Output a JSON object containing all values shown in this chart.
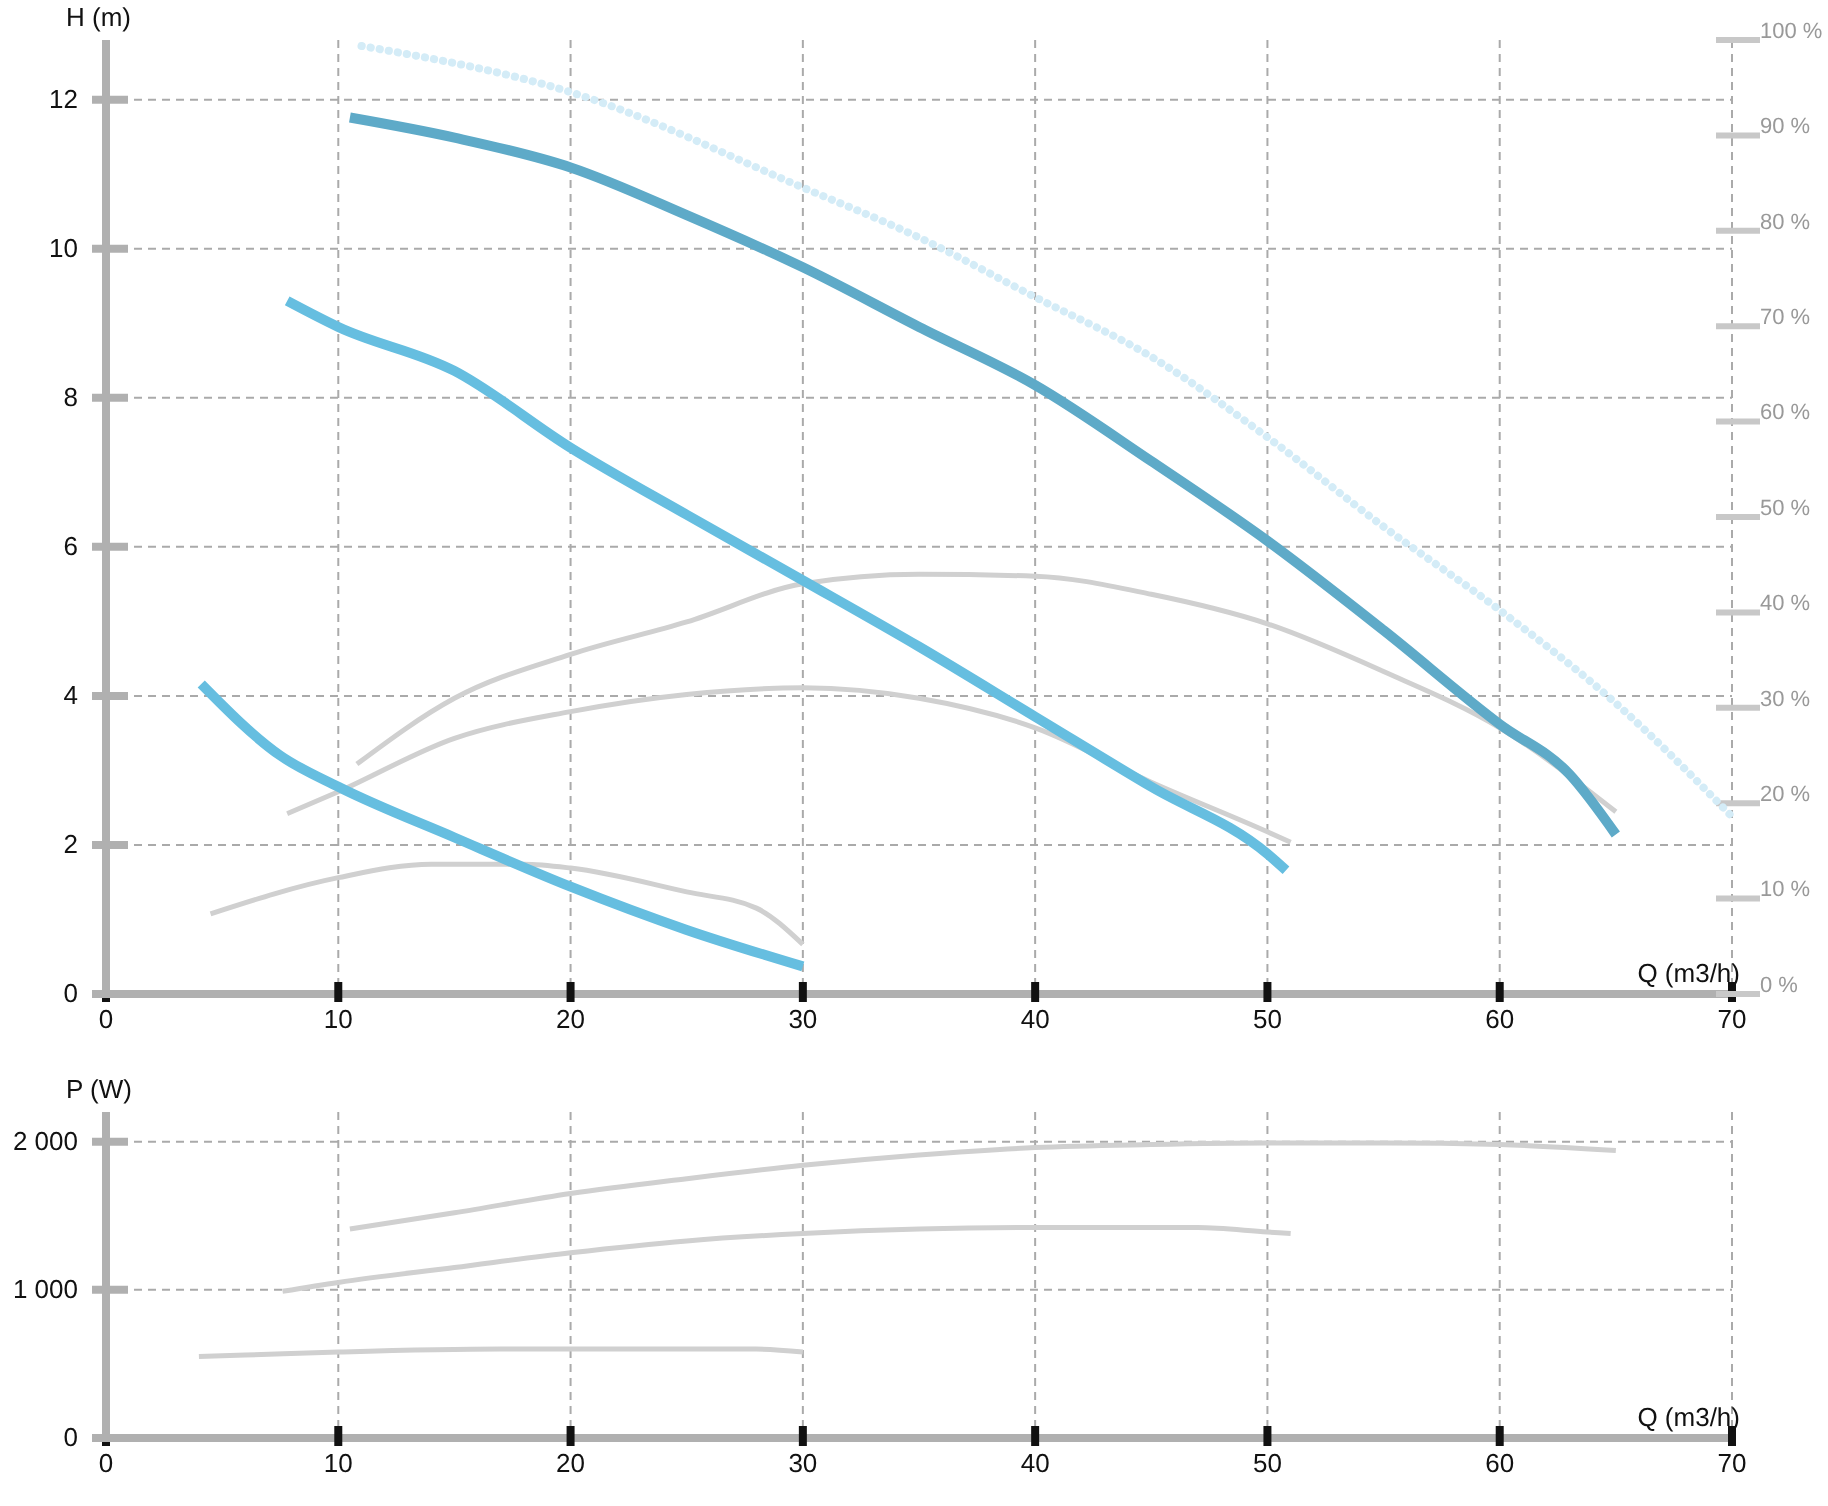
{
  "chart_data": [
    {
      "type": "line",
      "xlabel": "Q (m3/h)",
      "ylabel": "H (m)",
      "xlim": [
        0,
        70
      ],
      "xticks": [
        0,
        10,
        20,
        30,
        40,
        50,
        60,
        70
      ],
      "ylim": [
        0,
        12.8
      ],
      "yticks": [
        0,
        2,
        4,
        6,
        8,
        10,
        12
      ],
      "y2lim": [
        0,
        100
      ],
      "y2ticks": [
        {
          "value": 0,
          "label": "0 %"
        },
        {
          "value": 10,
          "label": "10 %"
        },
        {
          "value": 20,
          "label": "20 %"
        },
        {
          "value": 30,
          "label": "30 %"
        },
        {
          "value": 40,
          "label": "40 %"
        },
        {
          "value": 50,
          "label": "50 %"
        },
        {
          "value": 60,
          "label": "60 %"
        },
        {
          "value": 70,
          "label": "70 %"
        },
        {
          "value": 80,
          "label": "80 %"
        },
        {
          "value": 90,
          "label": "90 %"
        },
        {
          "value": 100,
          "label": "100 %"
        }
      ],
      "grid": true,
      "series": [
        {
          "color": "#d4ecf7",
          "line_style": "dotted",
          "x": [
            11,
            20,
            30,
            35,
            40,
            45,
            50,
            55,
            60,
            65,
            70
          ],
          "values": [
            12.72,
            12.1,
            10.82,
            10.15,
            9.35,
            8.55,
            7.47,
            6.27,
            5.15,
            3.9,
            2.38
          ]
        },
        {
          "color": "#d0d0d0",
          "axis": "y2",
          "x": [
            4.5,
            10,
            14,
            18,
            20,
            25,
            28,
            30
          ],
          "values": [
            8.4,
            12.2,
            13.6,
            13.6,
            13.2,
            10.7,
            9.0,
            5.2
          ]
        },
        {
          "color": "#d0d0d0",
          "axis": "y2",
          "x": [
            7.8,
            10,
            15,
            20,
            25,
            30,
            35,
            40,
            45,
            50,
            51
          ],
          "values": [
            18.9,
            21.2,
            26.8,
            29.6,
            31.4,
            32.1,
            31.0,
            27.9,
            22.2,
            17.0,
            15.9
          ]
        },
        {
          "color": "#d0d0d0",
          "axis": "y2",
          "x": [
            10.8,
            15,
            20,
            25,
            30,
            35,
            40,
            45,
            50,
            55,
            60,
            65
          ],
          "values": [
            24.1,
            31.0,
            35.6,
            39.0,
            43.0,
            44.0,
            43.8,
            41.9,
            38.8,
            33.8,
            27.9,
            19.1
          ]
        },
        {
          "color": "#5eaac8",
          "x": [
            10.5,
            15,
            20,
            25,
            30,
            35,
            40,
            45,
            50,
            55,
            60,
            63,
            65
          ],
          "values": [
            11.76,
            11.49,
            11.09,
            10.45,
            9.75,
            8.95,
            8.17,
            7.15,
            6.08,
            4.88,
            3.62,
            2.95,
            2.14
          ]
        },
        {
          "color": "#66bee0",
          "x": [
            7.8,
            10,
            15,
            20,
            25,
            30,
            35,
            40,
            45,
            50,
            50.8
          ],
          "values": [
            9.3,
            8.95,
            8.36,
            7.33,
            6.43,
            5.55,
            4.66,
            3.72,
            2.78,
            1.88,
            1.66
          ]
        },
        {
          "color": "#66bee0",
          "x": [
            4.1,
            7.5,
            10,
            15,
            20,
            25,
            30
          ],
          "values": [
            4.16,
            3.2,
            2.78,
            2.1,
            1.44,
            0.86,
            0.37
          ]
        }
      ]
    },
    {
      "type": "line",
      "xlabel": "Q (m3/h)",
      "ylabel": "P (W)",
      "xlim": [
        0,
        70
      ],
      "xticks": [
        0,
        10,
        20,
        30,
        40,
        50,
        60,
        70
      ],
      "ylim": [
        0,
        2200
      ],
      "yticks": [
        0,
        {
          "value": 1000,
          "label": "1 000"
        },
        {
          "value": 2000,
          "label": "2 000"
        }
      ],
      "grid": true,
      "series": [
        {
          "color": "#d0d0d0",
          "x": [
            4,
            6,
            10,
            17,
            25,
            28,
            30
          ],
          "values": [
            550,
            560,
            580,
            600,
            600,
            600,
            580
          ]
        },
        {
          "color": "#d0d0d0",
          "x": [
            7.6,
            10,
            15,
            20,
            25,
            30,
            35,
            40,
            47,
            50,
            51
          ],
          "values": [
            990,
            1050,
            1150,
            1250,
            1330,
            1380,
            1410,
            1420,
            1420,
            1390,
            1380
          ]
        },
        {
          "color": "#d0d0d0",
          "x": [
            10.5,
            15,
            20,
            25,
            30,
            35,
            40,
            45,
            50,
            55,
            60,
            65
          ],
          "values": [
            1410,
            1520,
            1650,
            1750,
            1840,
            1910,
            1960,
            1980,
            1990,
            1990,
            1980,
            1940
          ]
        }
      ]
    }
  ]
}
